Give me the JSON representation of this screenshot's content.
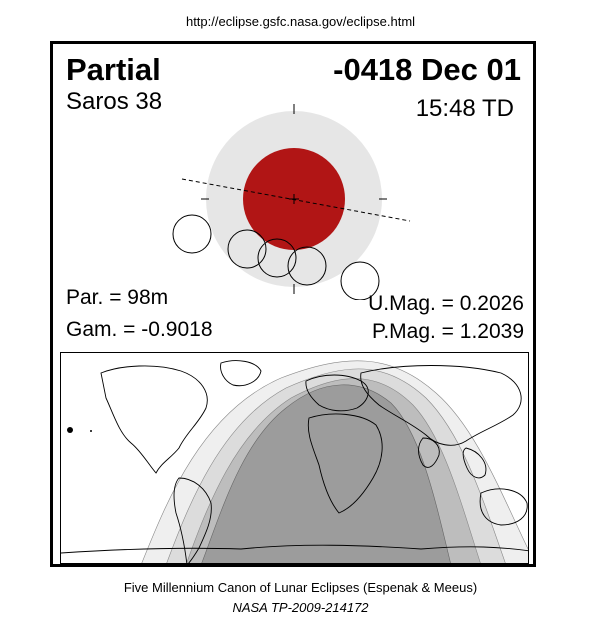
{
  "header": {
    "url": "http://eclipse.gsfc.nasa.gov/eclipse.html"
  },
  "eclipse": {
    "type": "Partial",
    "date": "-0418 Dec 01",
    "saros": "Saros  38",
    "time": "15:48 TD",
    "par": "Par. =  98m",
    "gam": "Gam. = -0.9018",
    "umag": "U.Mag. = 0.2026",
    "pmag": "P.Mag. = 1.2039"
  },
  "colors": {
    "umbra": "#b11515",
    "penumbra": "#e6e6e6",
    "map_dark": "#9c9c9c",
    "map_mid": "#bdbdbd",
    "map_light": "#dcdcdc",
    "map_lightest": "#efefef"
  },
  "footer": {
    "line1": "Five Millennium Canon of Lunar Eclipses (Espenak & Meeus)",
    "line2": "NASA TP-2009-214172"
  }
}
